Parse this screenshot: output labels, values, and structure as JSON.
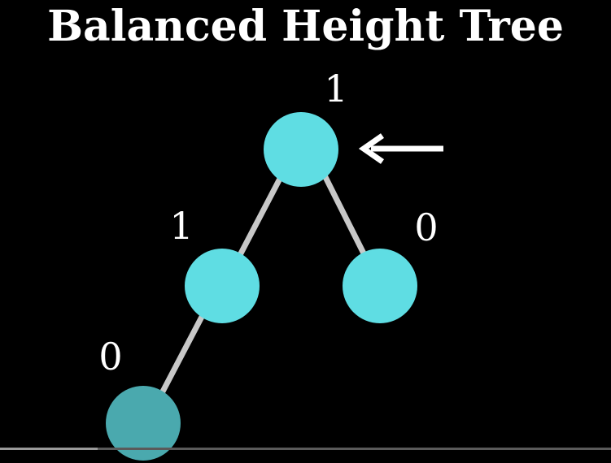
{
  "title": "Balanced Height Tree",
  "nodes": [
    {
      "id": "root",
      "label": "1",
      "color": "#5fdde3"
    },
    {
      "id": "left",
      "label": "1",
      "color": "#5fdde3"
    },
    {
      "id": "right",
      "label": "0",
      "color": "#5fdde3"
    },
    {
      "id": "left-left",
      "label": "0",
      "color": "#4aa9ae"
    }
  ],
  "edges": [
    [
      "root",
      "left"
    ],
    [
      "root",
      "right"
    ],
    [
      "left",
      "left-left"
    ]
  ],
  "pointer": {
    "icon": "left-arrow-icon",
    "target": "root",
    "color": "#ffffff"
  },
  "edge_color": "#c8c8c8",
  "background": "#000000",
  "video_progress": 0.16
}
